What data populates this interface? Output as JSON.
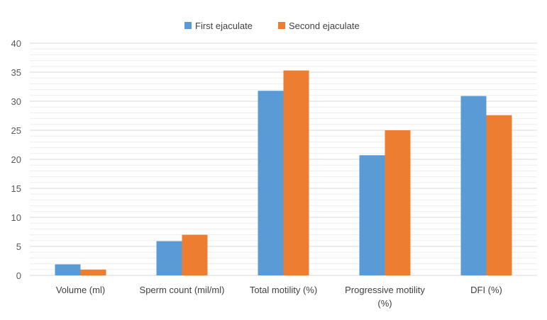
{
  "chart_data": {
    "type": "bar",
    "title": "",
    "xlabel": "",
    "ylabel": "",
    "categories": [
      "Volume (ml)",
      "Sperm count (mil/ml)",
      "Total motility (%)",
      "Progressive motility (%)",
      "DFI (%)"
    ],
    "category_lines": [
      [
        "Volume (ml)"
      ],
      [
        "Sperm count (mil/ml)"
      ],
      [
        "Total motility (%)"
      ],
      [
        "Progressive motility",
        "(%)"
      ],
      [
        "DFI (%)"
      ]
    ],
    "series": [
      {
        "name": "First ejaculate",
        "color": "#5B9BD5",
        "values": [
          1.9,
          5.9,
          31.8,
          20.7,
          30.9
        ]
      },
      {
        "name": "Second ejaculate",
        "color": "#ED7D31",
        "values": [
          1.0,
          7.0,
          35.3,
          25.0,
          27.6
        ]
      }
    ],
    "ylim": [
      0,
      40
    ],
    "yticks": [
      0,
      5,
      10,
      15,
      20,
      25,
      30,
      35,
      40
    ],
    "grid": true,
    "legend_position": "top"
  }
}
